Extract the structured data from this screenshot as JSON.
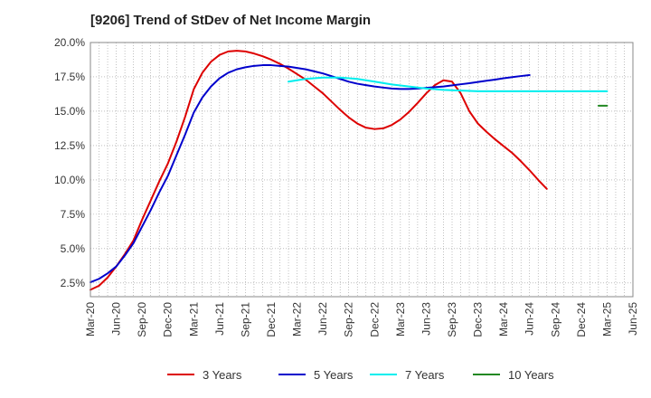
{
  "chart_data": {
    "type": "line",
    "title": "[9206]  Trend of StDev of Net Income Margin",
    "x_ticks": [
      "Mar-20",
      "Jun-20",
      "Sep-20",
      "Dec-20",
      "Mar-21",
      "Jun-21",
      "Sep-21",
      "Dec-21",
      "Mar-22",
      "Jun-22",
      "Sep-22",
      "Dec-22",
      "Mar-23",
      "Jun-23",
      "Sep-23",
      "Dec-23",
      "Mar-24",
      "Jun-24",
      "Sep-24",
      "Dec-24",
      "Mar-25",
      "Jun-25"
    ],
    "y_ticks": [
      "2.5%",
      "5.0%",
      "7.5%",
      "10.0%",
      "12.5%",
      "15.0%",
      "17.5%",
      "20.0%"
    ],
    "ylim": [
      1.5,
      20.0
    ],
    "grid": true,
    "legend_position": "bottom",
    "series": [
      {
        "name": "3 Years",
        "color": "#dd0000",
        "points": [
          [
            "Mar-20",
            2.0
          ],
          [
            "Apr-20",
            2.3
          ],
          [
            "May-20",
            2.9
          ],
          [
            "Jun-20",
            3.7
          ],
          [
            "Jul-20",
            4.6
          ],
          [
            "Aug-20",
            5.6
          ],
          [
            "Sep-20",
            7.1
          ],
          [
            "Oct-20",
            8.5
          ],
          [
            "Nov-20",
            9.9
          ],
          [
            "Dec-20",
            11.2
          ],
          [
            "Jan-21",
            12.8
          ],
          [
            "Feb-21",
            14.6
          ],
          [
            "Mar-21",
            16.6
          ],
          [
            "Apr-21",
            17.8
          ],
          [
            "May-21",
            18.6
          ],
          [
            "Jun-21",
            19.1
          ],
          [
            "Jul-21",
            19.35
          ],
          [
            "Aug-21",
            19.4
          ],
          [
            "Sep-21",
            19.35
          ],
          [
            "Oct-21",
            19.2
          ],
          [
            "Nov-21",
            19.0
          ],
          [
            "Dec-21",
            18.75
          ],
          [
            "Jan-22",
            18.45
          ],
          [
            "Feb-22",
            18.1
          ],
          [
            "Mar-22",
            17.7
          ],
          [
            "Apr-22",
            17.3
          ],
          [
            "May-22",
            16.8
          ],
          [
            "Jun-22",
            16.3
          ],
          [
            "Jul-22",
            15.7
          ],
          [
            "Aug-22",
            15.1
          ],
          [
            "Sep-22",
            14.55
          ],
          [
            "Oct-22",
            14.1
          ],
          [
            "Nov-22",
            13.8
          ],
          [
            "Dec-22",
            13.7
          ],
          [
            "Jan-23",
            13.75
          ],
          [
            "Feb-23",
            14.0
          ],
          [
            "Mar-23",
            14.4
          ],
          [
            "Apr-23",
            14.95
          ],
          [
            "May-23",
            15.6
          ],
          [
            "Jun-23",
            16.3
          ],
          [
            "Jul-23",
            16.9
          ],
          [
            "Aug-23",
            17.25
          ],
          [
            "Sep-23",
            17.15
          ],
          [
            "Oct-23",
            16.3
          ],
          [
            "Nov-23",
            15.0
          ],
          [
            "Dec-23",
            14.1
          ],
          [
            "Jan-24",
            13.5
          ],
          [
            "Feb-24",
            12.95
          ],
          [
            "Mar-24",
            12.45
          ],
          [
            "Apr-24",
            11.95
          ],
          [
            "May-24",
            11.35
          ],
          [
            "Jun-24",
            10.7
          ],
          [
            "Jul-24",
            10.0
          ],
          [
            "Aug-24",
            9.35
          ]
        ]
      },
      {
        "name": "5 Years",
        "color": "#0000cc",
        "points": [
          [
            "Mar-20",
            2.55
          ],
          [
            "Apr-20",
            2.8
          ],
          [
            "May-20",
            3.2
          ],
          [
            "Jun-20",
            3.7
          ],
          [
            "Jul-20",
            4.5
          ],
          [
            "Aug-20",
            5.4
          ],
          [
            "Sep-20",
            6.6
          ],
          [
            "Oct-20",
            7.8
          ],
          [
            "Nov-20",
            9.1
          ],
          [
            "Dec-20",
            10.3
          ],
          [
            "Jan-21",
            11.8
          ],
          [
            "Feb-21",
            13.3
          ],
          [
            "Mar-21",
            14.9
          ],
          [
            "Apr-21",
            16.0
          ],
          [
            "May-21",
            16.8
          ],
          [
            "Jun-21",
            17.4
          ],
          [
            "Jul-21",
            17.8
          ],
          [
            "Aug-21",
            18.05
          ],
          [
            "Sep-21",
            18.2
          ],
          [
            "Oct-21",
            18.3
          ],
          [
            "Nov-21",
            18.35
          ],
          [
            "Dec-21",
            18.35
          ],
          [
            "Jan-22",
            18.3
          ],
          [
            "Feb-22",
            18.25
          ],
          [
            "Mar-22",
            18.15
          ],
          [
            "Apr-22",
            18.05
          ],
          [
            "May-22",
            17.9
          ],
          [
            "Jun-22",
            17.75
          ],
          [
            "Jul-22",
            17.55
          ],
          [
            "Aug-22",
            17.35
          ],
          [
            "Sep-22",
            17.15
          ],
          [
            "Oct-22",
            17.0
          ],
          [
            "Nov-22",
            16.9
          ],
          [
            "Dec-22",
            16.8
          ],
          [
            "Jan-23",
            16.72
          ],
          [
            "Feb-23",
            16.65
          ],
          [
            "Mar-23",
            16.62
          ],
          [
            "Apr-23",
            16.62
          ],
          [
            "May-23",
            16.65
          ],
          [
            "Jun-23",
            16.7
          ],
          [
            "Jul-23",
            16.75
          ],
          [
            "Aug-23",
            16.8
          ],
          [
            "Sep-23",
            16.88
          ],
          [
            "Oct-23",
            16.96
          ],
          [
            "Nov-23",
            17.04
          ],
          [
            "Dec-23",
            17.13
          ],
          [
            "Jan-24",
            17.22
          ],
          [
            "Feb-24",
            17.3
          ],
          [
            "Mar-24",
            17.4
          ],
          [
            "Apr-24",
            17.48
          ],
          [
            "May-24",
            17.56
          ],
          [
            "Jun-24",
            17.63
          ]
        ]
      },
      {
        "name": "7 Years",
        "color": "#00eeee",
        "points": [
          [
            "Feb-22",
            17.15
          ],
          [
            "Apr-22",
            17.35
          ],
          [
            "Jun-22",
            17.45
          ],
          [
            "Aug-22",
            17.45
          ],
          [
            "Oct-22",
            17.35
          ],
          [
            "Dec-22",
            17.15
          ],
          [
            "Feb-23",
            16.95
          ],
          [
            "Apr-23",
            16.8
          ],
          [
            "Jun-23",
            16.65
          ],
          [
            "Aug-23",
            16.55
          ],
          [
            "Oct-23",
            16.5
          ],
          [
            "Dec-23",
            16.45
          ],
          [
            "Mar-24",
            16.45
          ],
          [
            "Jun-24",
            16.45
          ],
          [
            "Sep-24",
            16.45
          ],
          [
            "Dec-24",
            16.45
          ],
          [
            "Mar-25",
            16.45
          ]
        ]
      },
      {
        "name": "10 Years",
        "color": "#228822",
        "points": [
          [
            "Feb-25",
            15.4
          ],
          [
            "Mar-25",
            15.4
          ]
        ]
      }
    ]
  }
}
